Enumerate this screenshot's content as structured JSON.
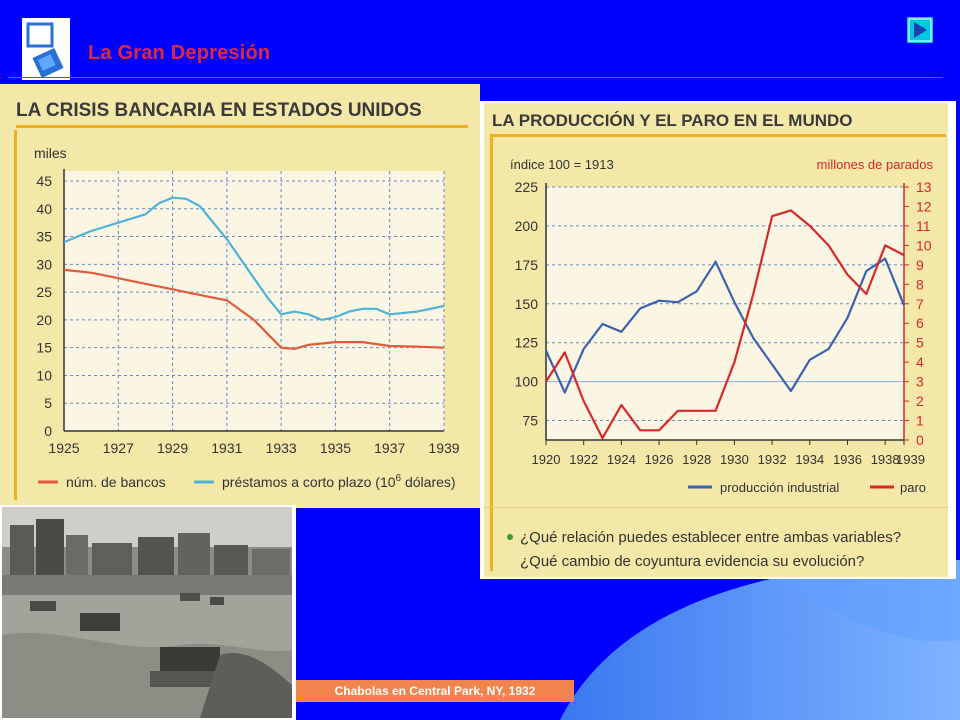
{
  "header": {
    "title": "La Gran Depresión",
    "next_icon": "next-slide-icon"
  },
  "colors": {
    "background": "#0000ff",
    "title": "#e0283c",
    "paper": "#f4e8a8",
    "red_line": "#e25a3a",
    "blue_line": "#4fb2d8",
    "prod_line": "#3a62b0",
    "paro_line": "#d82828",
    "caption_bg": "#f0844c"
  },
  "chart_data": [
    {
      "type": "line",
      "title": "LA CRISIS BANCARIA EN ESTADOS UNIDOS",
      "ylabel": "miles",
      "xlabel": "",
      "ylim": [
        0,
        45
      ],
      "xlim": [
        1925,
        1939
      ],
      "x_ticks": [
        "1925",
        "1927",
        "1929",
        "1931",
        "1933",
        "1935",
        "1937",
        "1939"
      ],
      "y_ticks": [
        "0",
        "5",
        "10",
        "15",
        "20",
        "25",
        "30",
        "35",
        "40",
        "45"
      ],
      "grid": true,
      "legend": {
        "n1": "núm. de bancos",
        "n2_prefix": "préstamos a corto plazo (10",
        "n2_sup": "6",
        "n2_suffix": " dólares)"
      },
      "legend_position": "bottom",
      "series": [
        {
          "name": "núm. de bancos",
          "color": "#e25a3a",
          "x": [
            1925,
            1926,
            1927,
            1928,
            1929,
            1930,
            1931,
            1932,
            1932.5,
            1933,
            1933.5,
            1934,
            1935,
            1936,
            1937,
            1938,
            1939
          ],
          "values": [
            29.0,
            28.5,
            27.5,
            26.5,
            25.5,
            24.5,
            23.5,
            20.0,
            17.5,
            15.0,
            14.8,
            15.5,
            16.0,
            16.0,
            15.3,
            15.2,
            15.0
          ]
        },
        {
          "name": "préstamos a corto plazo (10⁶ dólares)",
          "color": "#4fb2d8",
          "x": [
            1925,
            1926,
            1927,
            1928,
            1928.5,
            1929,
            1929.5,
            1930,
            1931,
            1932,
            1932.5,
            1933,
            1933.5,
            1934,
            1934.5,
            1935,
            1935.5,
            1936,
            1936.5,
            1937,
            1938,
            1939
          ],
          "values": [
            34.0,
            36.0,
            37.5,
            39.0,
            41.0,
            42.0,
            41.8,
            40.5,
            34.5,
            27.5,
            24.0,
            21.0,
            21.5,
            21.0,
            20.0,
            20.5,
            21.5,
            22.0,
            22.0,
            21.0,
            21.5,
            22.5
          ]
        }
      ]
    },
    {
      "type": "line",
      "title": "LA PRODUCCIÓN Y EL PARO EN EL MUNDO",
      "ylabel_left": "índice 100 = 1913",
      "ylabel_right": "millones de parados",
      "xlim": [
        1920,
        1939
      ],
      "ylim_left": [
        62.5,
        225
      ],
      "ylim_right": [
        0,
        13
      ],
      "x_ticks": [
        "1920",
        "1922",
        "1924",
        "1926",
        "1928",
        "1930",
        "1932",
        "1934",
        "1936",
        "1938",
        "1939"
      ],
      "y_ticks_left": [
        "75",
        "100",
        "125",
        "150",
        "175",
        "200",
        "225"
      ],
      "y_ticks_right": [
        "0",
        "1",
        "2",
        "3",
        "4",
        "5",
        "6",
        "7",
        "8",
        "9",
        "10",
        "11",
        "12",
        "13"
      ],
      "grid": true,
      "legend_position": "bottom",
      "series": [
        {
          "name": "producción industrial",
          "color": "#3a62b0",
          "axis": "left",
          "x": [
            1920,
            1921,
            1922,
            1923,
            1924,
            1925,
            1926,
            1927,
            1928,
            1929,
            1930,
            1931,
            1932,
            1933,
            1934,
            1935,
            1936,
            1937,
            1938,
            1939
          ],
          "values": [
            120,
            93,
            121,
            137,
            132,
            147,
            152,
            151,
            158,
            177,
            151,
            128,
            111,
            94,
            114,
            121,
            141,
            171,
            179,
            149
          ]
        },
        {
          "name": "paro",
          "color": "#d82828",
          "axis": "right",
          "x": [
            1920,
            1921,
            1922,
            1923,
            1924,
            1925,
            1926,
            1927,
            1928,
            1929,
            1930,
            1931,
            1932,
            1933,
            1934,
            1935,
            1936,
            1937,
            1938,
            1939
          ],
          "values": [
            3.0,
            4.5,
            2.0,
            0.1,
            1.8,
            0.5,
            0.5,
            1.5,
            1.5,
            1.5,
            4.0,
            7.5,
            11.5,
            11.8,
            11.0,
            10.0,
            8.5,
            7.5,
            10.0,
            9.5
          ]
        }
      ],
      "question_lines": [
        "¿Qué relación puedes establecer entre ambas variables?",
        "¿Qué cambio de coyuntura evidencia su evolución?"
      ]
    }
  ],
  "photo": {
    "caption": "Chabolas en Central Park, NY, 1932"
  }
}
